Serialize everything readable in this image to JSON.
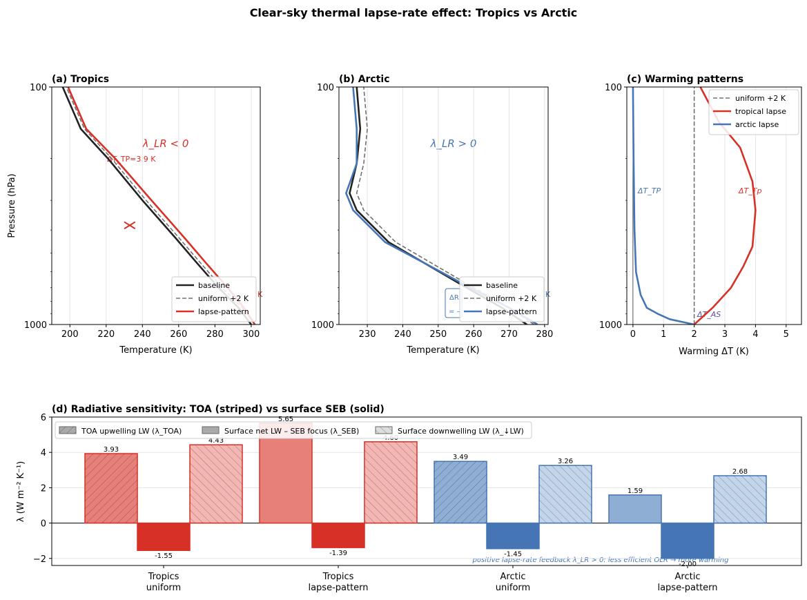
{
  "figure": {
    "title": "Clear-sky thermal lapse-rate effect: Tropics vs Arctic"
  },
  "colors": {
    "baseline": "#222222",
    "uniform": "#707070",
    "tropics": "#d73027",
    "tropics_light": "#e8807a",
    "tropics_pale": "#f4b6b2",
    "arctic": "#4575b4",
    "arctic_light": "#8faed3",
    "arctic_pale": "#c3d5ea",
    "grid": "#e3e3e3"
  },
  "chart_data": [
    {
      "id": "a",
      "type": "line",
      "title": "(a) Tropics",
      "xlabel": "Temperature (K)",
      "ylabel": "Pressure (hPa)",
      "xlim": [
        190,
        305
      ],
      "ylim": [
        1000,
        100
      ],
      "yscale": "log",
      "xticks": [
        200,
        220,
        240,
        260,
        280,
        300
      ],
      "yticks": [
        100,
        1000
      ],
      "grid": "x",
      "legend_position": "lower right",
      "annotation": "λ_LR < 0",
      "annotation_label": "ΔT_TP=3.9 K",
      "annotation_right": "K",
      "series": [
        {
          "name": "baseline",
          "style": "solid",
          "color": "#222222",
          "points": [
            [
              300,
              1000
            ],
            [
              293,
              850
            ],
            [
              282,
              700
            ],
            [
              270,
              550
            ],
            [
              258,
              430
            ],
            [
              240,
              300
            ],
            [
              221,
              200
            ],
            [
              206,
              150
            ],
            [
              196,
              100
            ]
          ]
        },
        {
          "name": "uniform +2 K",
          "style": "dashed",
          "color": "#707070",
          "points": [
            [
              302,
              1000
            ],
            [
              295,
              850
            ],
            [
              284,
              700
            ],
            [
              272,
              550
            ],
            [
              260,
              430
            ],
            [
              242,
              300
            ],
            [
              223,
              200
            ],
            [
              208,
              150
            ],
            [
              198,
              100
            ]
          ]
        },
        {
          "name": "lapse-pattern",
          "style": "solid",
          "color": "#d73027",
          "points": [
            [
              302,
              1000
            ],
            [
              296,
              850
            ],
            [
              287,
              700
            ],
            [
              275,
              550
            ],
            [
              263,
              430
            ],
            [
              245,
              300
            ],
            [
              225,
              200
            ],
            [
              209,
              150
            ],
            [
              199,
              100
            ]
          ]
        }
      ]
    },
    {
      "id": "b",
      "type": "line",
      "title": "(b) Arctic",
      "xlabel": "Temperature (K)",
      "ylabel": "",
      "xlim": [
        222,
        281
      ],
      "ylim": [
        1000,
        100
      ],
      "yscale": "log",
      "xticks": [
        230,
        240,
        250,
        260,
        270,
        280
      ],
      "yticks": [
        100,
        1000
      ],
      "grid": "x",
      "legend_position": "lower right",
      "annotation": "λ_LR > 0",
      "annotation_box": [
        "ΔR",
        "= –"
      ],
      "annotation_right": "K",
      "series": [
        {
          "name": "baseline",
          "style": "solid",
          "color": "#222222",
          "points": [
            [
              275,
              1000
            ],
            [
              268,
              850
            ],
            [
              258,
              700
            ],
            [
              246,
              550
            ],
            [
              236,
              450
            ],
            [
              227,
              330
            ],
            [
              225,
              280
            ],
            [
              227,
              210
            ],
            [
              228,
              150
            ],
            [
              227,
              100
            ]
          ]
        },
        {
          "name": "uniform +2 K",
          "style": "dashed",
          "color": "#707070",
          "points": [
            [
              277,
              1000
            ],
            [
              270,
              850
            ],
            [
              260,
              700
            ],
            [
              248,
              550
            ],
            [
              238,
              450
            ],
            [
              229,
              330
            ],
            [
              227,
              280
            ],
            [
              229,
              210
            ],
            [
              230,
              150
            ],
            [
              229,
              100
            ]
          ]
        },
        {
          "name": "lapse-pattern",
          "style": "solid",
          "color": "#4575b4",
          "points": [
            [
              278,
              1000
            ],
            [
              270,
              850
            ],
            [
              259,
              700
            ],
            [
              246,
              550
            ],
            [
              235,
              450
            ],
            [
              226,
              330
            ],
            [
              224,
              280
            ],
            [
              227,
              210
            ],
            [
              227,
              150
            ],
            [
              226,
              100
            ]
          ]
        }
      ]
    },
    {
      "id": "c",
      "type": "line",
      "title": "(c) Warming patterns",
      "xlabel": "Warming ΔT (K)",
      "ylabel": "",
      "xlim": [
        -0.2,
        5.5
      ],
      "ylim": [
        1000,
        100
      ],
      "yscale": "log",
      "xticks": [
        0,
        1,
        2,
        3,
        4,
        5
      ],
      "yticks": [
        100,
        1000
      ],
      "grid": "x",
      "legend_position": "upper right",
      "labels": [
        "ΔT_TP",
        "ΔT_Tp",
        "ΔT_AS"
      ],
      "series": [
        {
          "name": "uniform +2 K",
          "style": "dashed",
          "color": "#707070",
          "points": [
            [
              2,
              1000
            ],
            [
              2,
              100
            ]
          ]
        },
        {
          "name": "tropical lapse",
          "style": "solid",
          "color": "#d73027",
          "points": [
            [
              2.0,
              1000
            ],
            [
              2.6,
              850
            ],
            [
              3.2,
              700
            ],
            [
              3.6,
              570
            ],
            [
              3.9,
              470
            ],
            [
              4.0,
              330
            ],
            [
              3.9,
              250
            ],
            [
              3.5,
              180
            ],
            [
              2.8,
              140
            ],
            [
              2.2,
              100
            ]
          ]
        },
        {
          "name": "arctic lapse",
          "style": "solid",
          "color": "#4575b4",
          "points": [
            [
              2.0,
              1000
            ],
            [
              1.2,
              950
            ],
            [
              0.8,
              900
            ],
            [
              0.45,
              850
            ],
            [
              0.25,
              750
            ],
            [
              0.1,
              600
            ],
            [
              0.05,
              400
            ],
            [
              0.02,
              200
            ],
            [
              0.0,
              100
            ]
          ]
        }
      ]
    },
    {
      "id": "d",
      "type": "bar",
      "title": "(d) Radiative sensitivity: TOA (striped) vs surface SEB (solid)",
      "ylabel": "λ (W m⁻² K⁻¹)",
      "ylim": [
        -2.4,
        6
      ],
      "yticks": [
        -2,
        0,
        2,
        4,
        6
      ],
      "grid": "y",
      "legend_position": "top-left",
      "categories": [
        "Tropics\nuniform",
        "Tropics\nlapse-pattern",
        "Arctic\nuniform",
        "Arctic\nlapse-pattern"
      ],
      "series": [
        {
          "name": "TOA upwelling LW (λ_TOA)",
          "pattern": "hatch-forward",
          "values": [
            3.93,
            5.65,
            3.49,
            1.59
          ]
        },
        {
          "name": "Surface net LW – SEB focus (λ_SEB)",
          "pattern": "solid",
          "values": [
            -1.55,
            -1.39,
            -1.45,
            -2.0
          ]
        },
        {
          "name": "Surface downwelling LW (λ_↓LW)",
          "pattern": "hatch-back",
          "values": [
            4.43,
            4.6,
            3.26,
            2.68
          ]
        }
      ],
      "value_labels": [
        [
          "3.93",
          "5.65",
          "3.49",
          "1.59"
        ],
        [
          "-1.55",
          "-1.39",
          "-1.45",
          "-2.00"
        ],
        [
          "4.43",
          "4.60",
          "3.26",
          "2.68"
        ]
      ],
      "note": "positive lapse-rate feedback λ_LR > 0: less efficient OLR → more warming"
    }
  ]
}
